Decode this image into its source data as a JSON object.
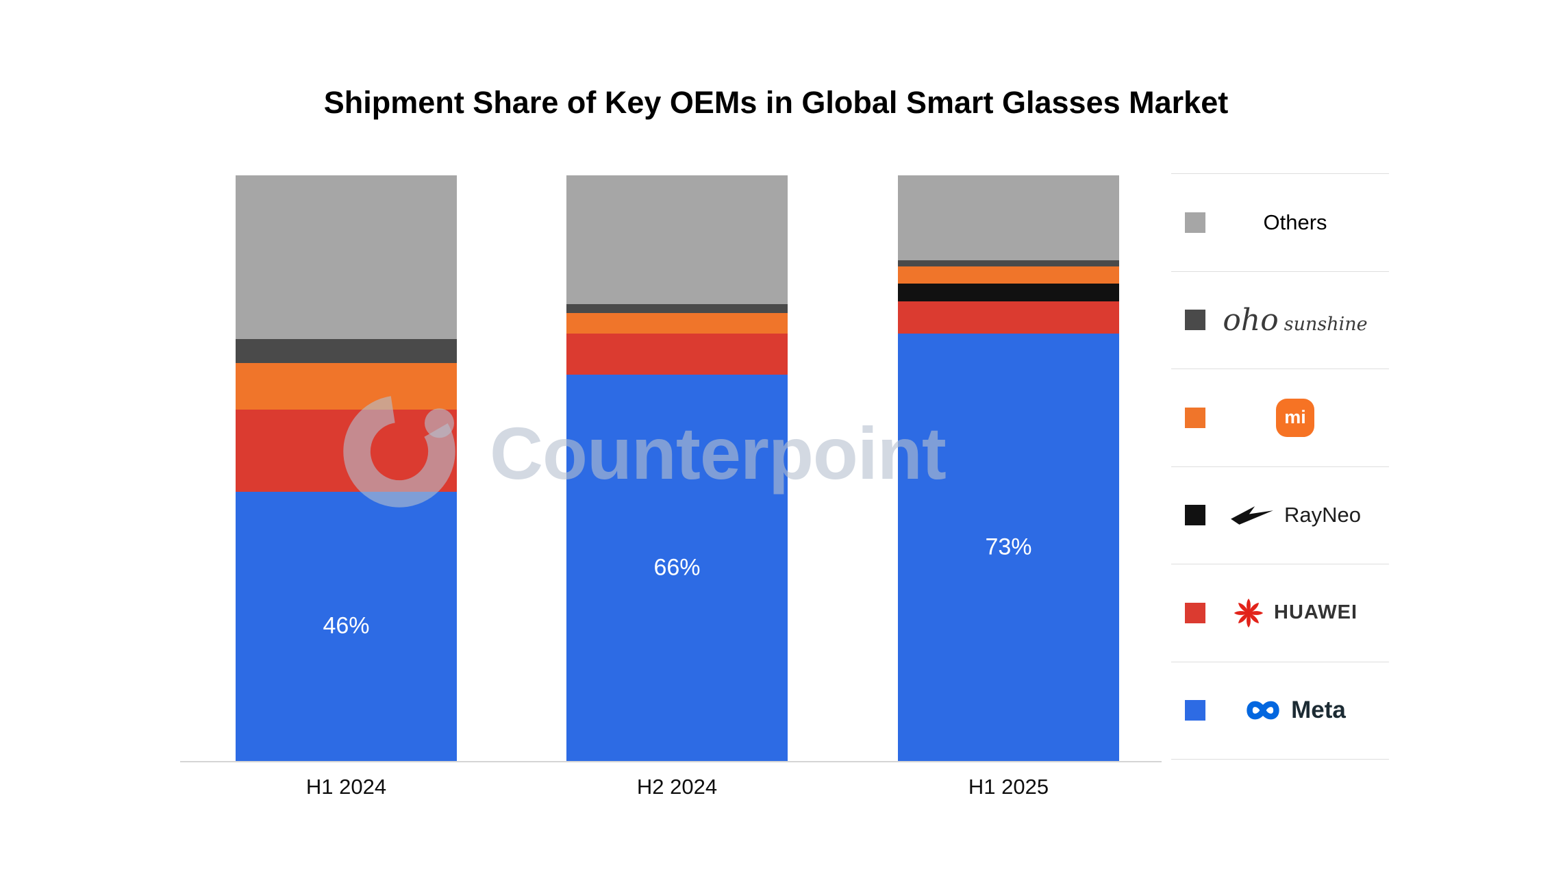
{
  "title": "Shipment Share of Key OEMs in Global Smart Glasses Market",
  "watermark": {
    "text": "Counterpoint"
  },
  "chart_data": {
    "type": "bar",
    "stacked": true,
    "unit": "percent_share",
    "title": "Shipment Share of Key OEMs in Global Smart Glasses Market",
    "categories": [
      "H1 2024",
      "H2 2024",
      "H1 2025"
    ],
    "ylim": [
      0,
      100
    ],
    "grid": false,
    "legend_position": "right",
    "series": [
      {
        "name": "Meta",
        "color": "#2d6be4",
        "values": [
          46,
          66,
          73
        ],
        "value_labels": [
          "46%",
          "66%",
          "73%"
        ]
      },
      {
        "name": "Huawei",
        "color": "#db3b30",
        "values": [
          14,
          7,
          5.5
        ]
      },
      {
        "name": "RayNeo",
        "color": "#111111",
        "values": [
          0,
          0,
          3
        ]
      },
      {
        "name": "Xiaomi",
        "color": "#f0752a",
        "values": [
          8,
          3.5,
          3
        ]
      },
      {
        "name": "oho sunshine",
        "color": "#4a4a4a",
        "values": [
          4,
          1.5,
          1
        ]
      },
      {
        "name": "Others",
        "color": "#a6a6a6",
        "values": [
          28,
          22,
          14.5
        ]
      }
    ]
  },
  "legend": {
    "items": [
      {
        "id": "others",
        "type": "text",
        "color": "#a6a6a6",
        "label": "Others"
      },
      {
        "id": "oho-sunshine",
        "type": "oho",
        "color": "#4a4a4a",
        "label_primary": "oho",
        "label_secondary": "sunshine"
      },
      {
        "id": "xiaomi",
        "type": "xiaomi",
        "color": "#f0752a",
        "logo_text": "mi"
      },
      {
        "id": "rayneo",
        "type": "rayneo",
        "color": "#111111",
        "label": "RayNeo"
      },
      {
        "id": "huawei",
        "type": "huawei",
        "color": "#db3b30",
        "label": "HUAWEI"
      },
      {
        "id": "meta",
        "type": "meta",
        "color": "#2d6be4",
        "label": "Meta"
      }
    ]
  },
  "colors": {
    "meta_blue": "#2d6be4",
    "huawei_red": "#db3b30",
    "rayneo_black": "#111111",
    "xiaomi_orange": "#f0752a",
    "oho_gray": "#4a4a4a",
    "others_gray": "#a6a6a6",
    "axis_line": "#d5d5d5",
    "watermark": "#b6c0ce"
  }
}
